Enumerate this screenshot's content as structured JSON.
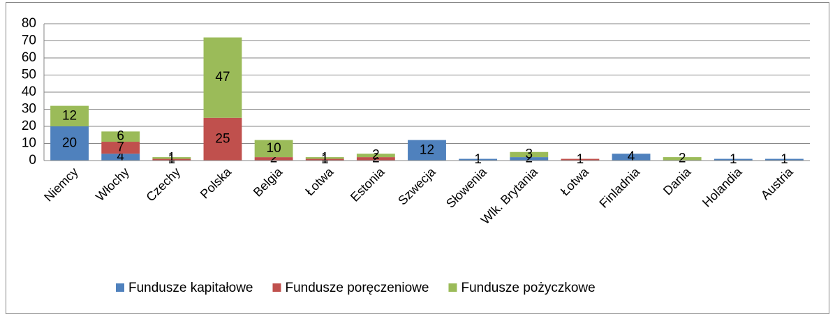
{
  "chart_data": {
    "type": "stacked_bar",
    "categories": [
      "Niemcy",
      "Włochy",
      "Czechy",
      "Polska",
      "Belgia",
      "Łotwa",
      "Estonia",
      "Szwecja",
      "Słowenia",
      "Wlk. Brytania",
      "Łotwa",
      "Finladnia",
      "Dania",
      "Holandia",
      "Austria"
    ],
    "series": [
      {
        "name": "Fundusze kapitałowe",
        "color": "#4f81bd",
        "values": [
          20,
          4,
          null,
          null,
          null,
          null,
          null,
          12,
          1,
          2,
          null,
          4,
          null,
          1,
          1
        ]
      },
      {
        "name": "Fundusze poręczeniowe",
        "color": "#c0504d",
        "values": [
          null,
          7,
          1,
          25,
          2,
          1,
          2,
          null,
          null,
          null,
          1,
          null,
          null,
          null,
          null
        ]
      },
      {
        "name": "Fundusze pożyczkowe",
        "color": "#9bbb59",
        "values": [
          12,
          6,
          1,
          47,
          10,
          1,
          2,
          null,
          null,
          3,
          null,
          null,
          2,
          null,
          null
        ]
      }
    ],
    "ylim": [
      0,
      80
    ],
    "yticks": [
      0,
      10,
      20,
      30,
      40,
      50,
      60,
      70,
      80
    ],
    "grid": true,
    "legend": "bottom"
  }
}
